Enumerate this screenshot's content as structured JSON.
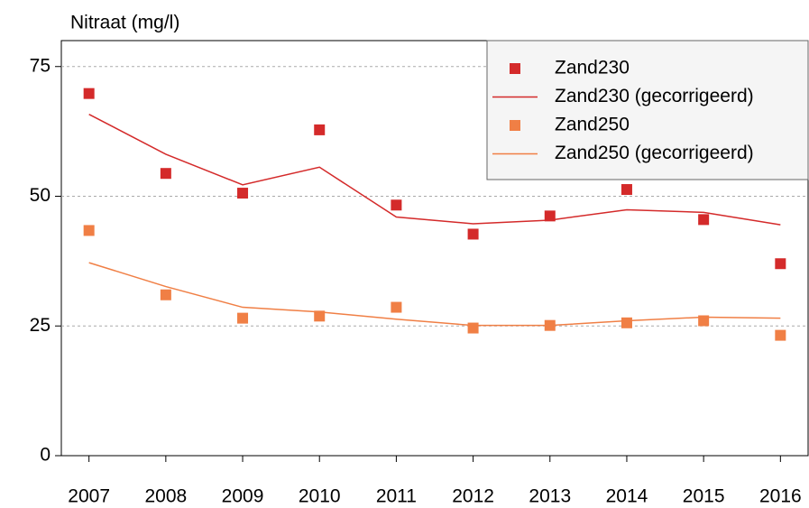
{
  "chart_data": {
    "type": "line",
    "y_label": "Nitraat (mg/l)",
    "x": [
      2007,
      2008,
      2009,
      2010,
      2011,
      2012,
      2013,
      2014,
      2015,
      2016
    ],
    "xlim": [
      2006.64,
      2016.36
    ],
    "xticks": [
      2007,
      2008,
      2009,
      2010,
      2011,
      2012,
      2013,
      2014,
      2015,
      2016
    ],
    "ylim": [
      0,
      80
    ],
    "yticks": [
      0,
      25,
      50,
      75
    ],
    "grid": true,
    "legend": "upper right",
    "series": [
      {
        "name": "Zand230",
        "color": "#d42a2a",
        "style": "marker",
        "values": [
          69.8,
          54.4,
          50.6,
          62.8,
          48.3,
          42.7,
          46.2,
          51.3,
          45.5,
          37.0
        ]
      },
      {
        "name": "Zand230 (gecorrigeerd)",
        "color": "#d42a2a",
        "style": "line",
        "values": [
          65.8,
          58.1,
          52.2,
          55.6,
          46.0,
          44.7,
          45.4,
          47.4,
          46.9,
          44.5
        ]
      },
      {
        "name": "Zand250",
        "color": "#f07f45",
        "style": "marker",
        "values": [
          43.4,
          31.0,
          26.5,
          26.9,
          28.6,
          24.6,
          25.1,
          25.6,
          26.0,
          23.2
        ]
      },
      {
        "name": "Zand250 (gecorrigeerd)",
        "color": "#f07f45",
        "style": "line",
        "values": [
          37.2,
          32.6,
          28.6,
          27.7,
          26.3,
          25.1,
          25.1,
          26.0,
          26.7,
          26.5
        ]
      }
    ]
  }
}
